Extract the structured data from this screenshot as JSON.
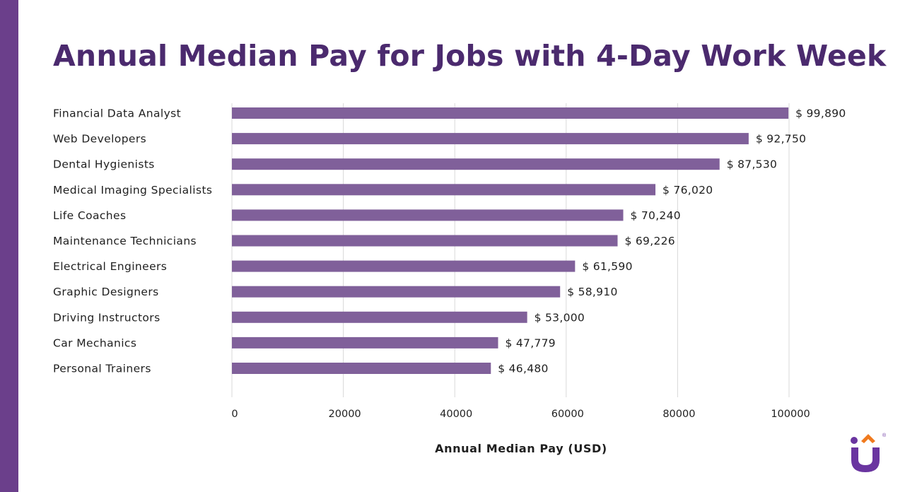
{
  "colors": {
    "accent": "#6b3f8b",
    "bar": "#80609a",
    "title": "#4b2a6e",
    "logo_purple": "#6a35a0",
    "logo_orange": "#f07a1e"
  },
  "logo": {
    "name": "brand-logo",
    "mark": "®"
  },
  "chart_data": {
    "type": "bar",
    "orientation": "horizontal",
    "title": "Annual Median Pay for Jobs with 4-Day Work Week",
    "xlabel": "Annual Median Pay (USD)",
    "ylabel": "",
    "xlim": [
      0,
      100000
    ],
    "xticks": [
      0,
      20000,
      40000,
      60000,
      80000,
      100000
    ],
    "xtick_labels": [
      "0",
      "20000",
      "40000",
      "60000",
      "80000",
      "100000"
    ],
    "grid": true,
    "legend": "none",
    "categories": [
      "Financial Data Analyst",
      "Web Developers",
      "Dental Hygienists",
      "Medical Imaging Specialists",
      "Life Coaches",
      "Maintenance Technicians",
      "Electrical Engineers",
      "Graphic Designers",
      "Driving Instructors",
      "Car Mechanics",
      "Personal Trainers"
    ],
    "values": [
      99890,
      92750,
      87530,
      76020,
      70240,
      69226,
      61590,
      58910,
      53000,
      47779,
      46480
    ],
    "value_labels": [
      "$ 99,890",
      "$ 92,750",
      "$ 87,530",
      "$ 76,020",
      "$ 70,240",
      "$ 69,226",
      "$ 61,590",
      "$ 58,910",
      "$ 53,000",
      "$ 47,779",
      "$ 46,480"
    ]
  }
}
